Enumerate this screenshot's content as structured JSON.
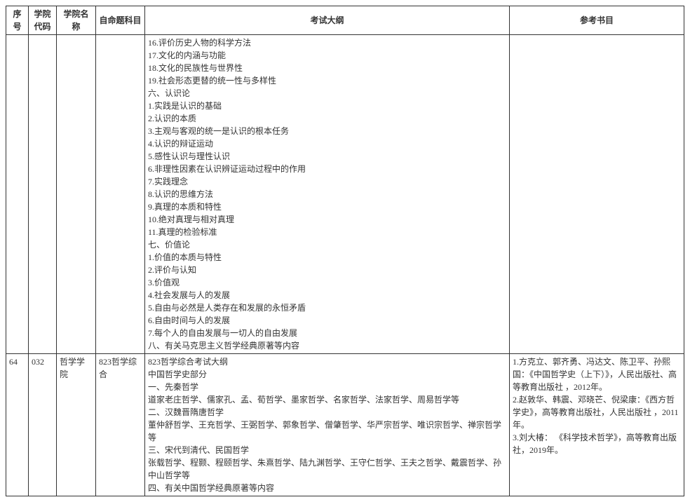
{
  "headers": {
    "seq": "序号",
    "college_code": "学院代码",
    "college_name": "学院名称",
    "subject": "自命题科目",
    "outline": "考试大纲",
    "references": "参考书目"
  },
  "rows": [
    {
      "seq": "",
      "college_code": "",
      "college_name": "",
      "subject": "",
      "outline_lines": [
        "16.评价历史人物的科学方法",
        "17.文化的内涵与功能",
        "18.文化的民族性与世界性",
        "19.社会形态更替的统一性与多样性",
        "六、认识论",
        "1.实践是认识的基础",
        "2.认识的本质",
        "3.主观与客观的统一是认识的根本任务",
        "4.认识的辩证运动",
        "5.感性认识与理性认识",
        "6.非理性因素在认识辨证运动过程中的作用",
        "7.实践理念",
        "8.认识的思维方法",
        "9.真理的本质和特性",
        "10.绝对真理与相对真理",
        "11.真理的检验标准",
        "七、价值论",
        "1.价值的本质与特性",
        "2.评价与认知",
        "3.价值观",
        "4.社会发展与人的发展",
        "5.自由与必然是人类存在和发展的永恒矛盾",
        "6.自由时间与人的发展",
        "7.每个人的自由发展与一切人的自由发展",
        "八、有关马克思主义哲学经典原著等内容"
      ],
      "references_lines": []
    },
    {
      "seq": "64",
      "college_code": "032",
      "college_name": "哲学学院",
      "subject": "823哲学综合",
      "outline_lines": [
        "823哲学综合考试大纲",
        "中国哲学史部分",
        "一、先秦哲学",
        "道家老庄哲学、儒家孔、孟、荀哲学、墨家哲学、名家哲学、法家哲学、周易哲学等",
        "二、汉魏晋隋唐哲学",
        "董仲舒哲学、王充哲学、王弼哲学、郭象哲学、僧肇哲学、华严宗哲学、唯识宗哲学、禅宗哲学等",
        "三、宋代到清代、民国哲学",
        "张载哲学、程颢、程颐哲学、朱熹哲学、陆九渊哲学、王守仁哲学、王夫之哲学、戴震哲学、孙中山哲学等",
        "四、有关中国哲学经典原著等内容"
      ],
      "references_lines": [
        "1.方克立、郭齐勇、冯达文、陈卫平、孙熙国：《中国哲学史（上下）》，人民出版社、高等教育出版社 ，2012年。",
        "2.赵敦华、韩震、邓晓芒、倪梁康：《西方哲学史》，高等教育出版社，人民出版社 ，2011年。",
        "3.刘大椿： 《科学技术哲学》，高等教育出版社，2019年。"
      ]
    }
  ]
}
